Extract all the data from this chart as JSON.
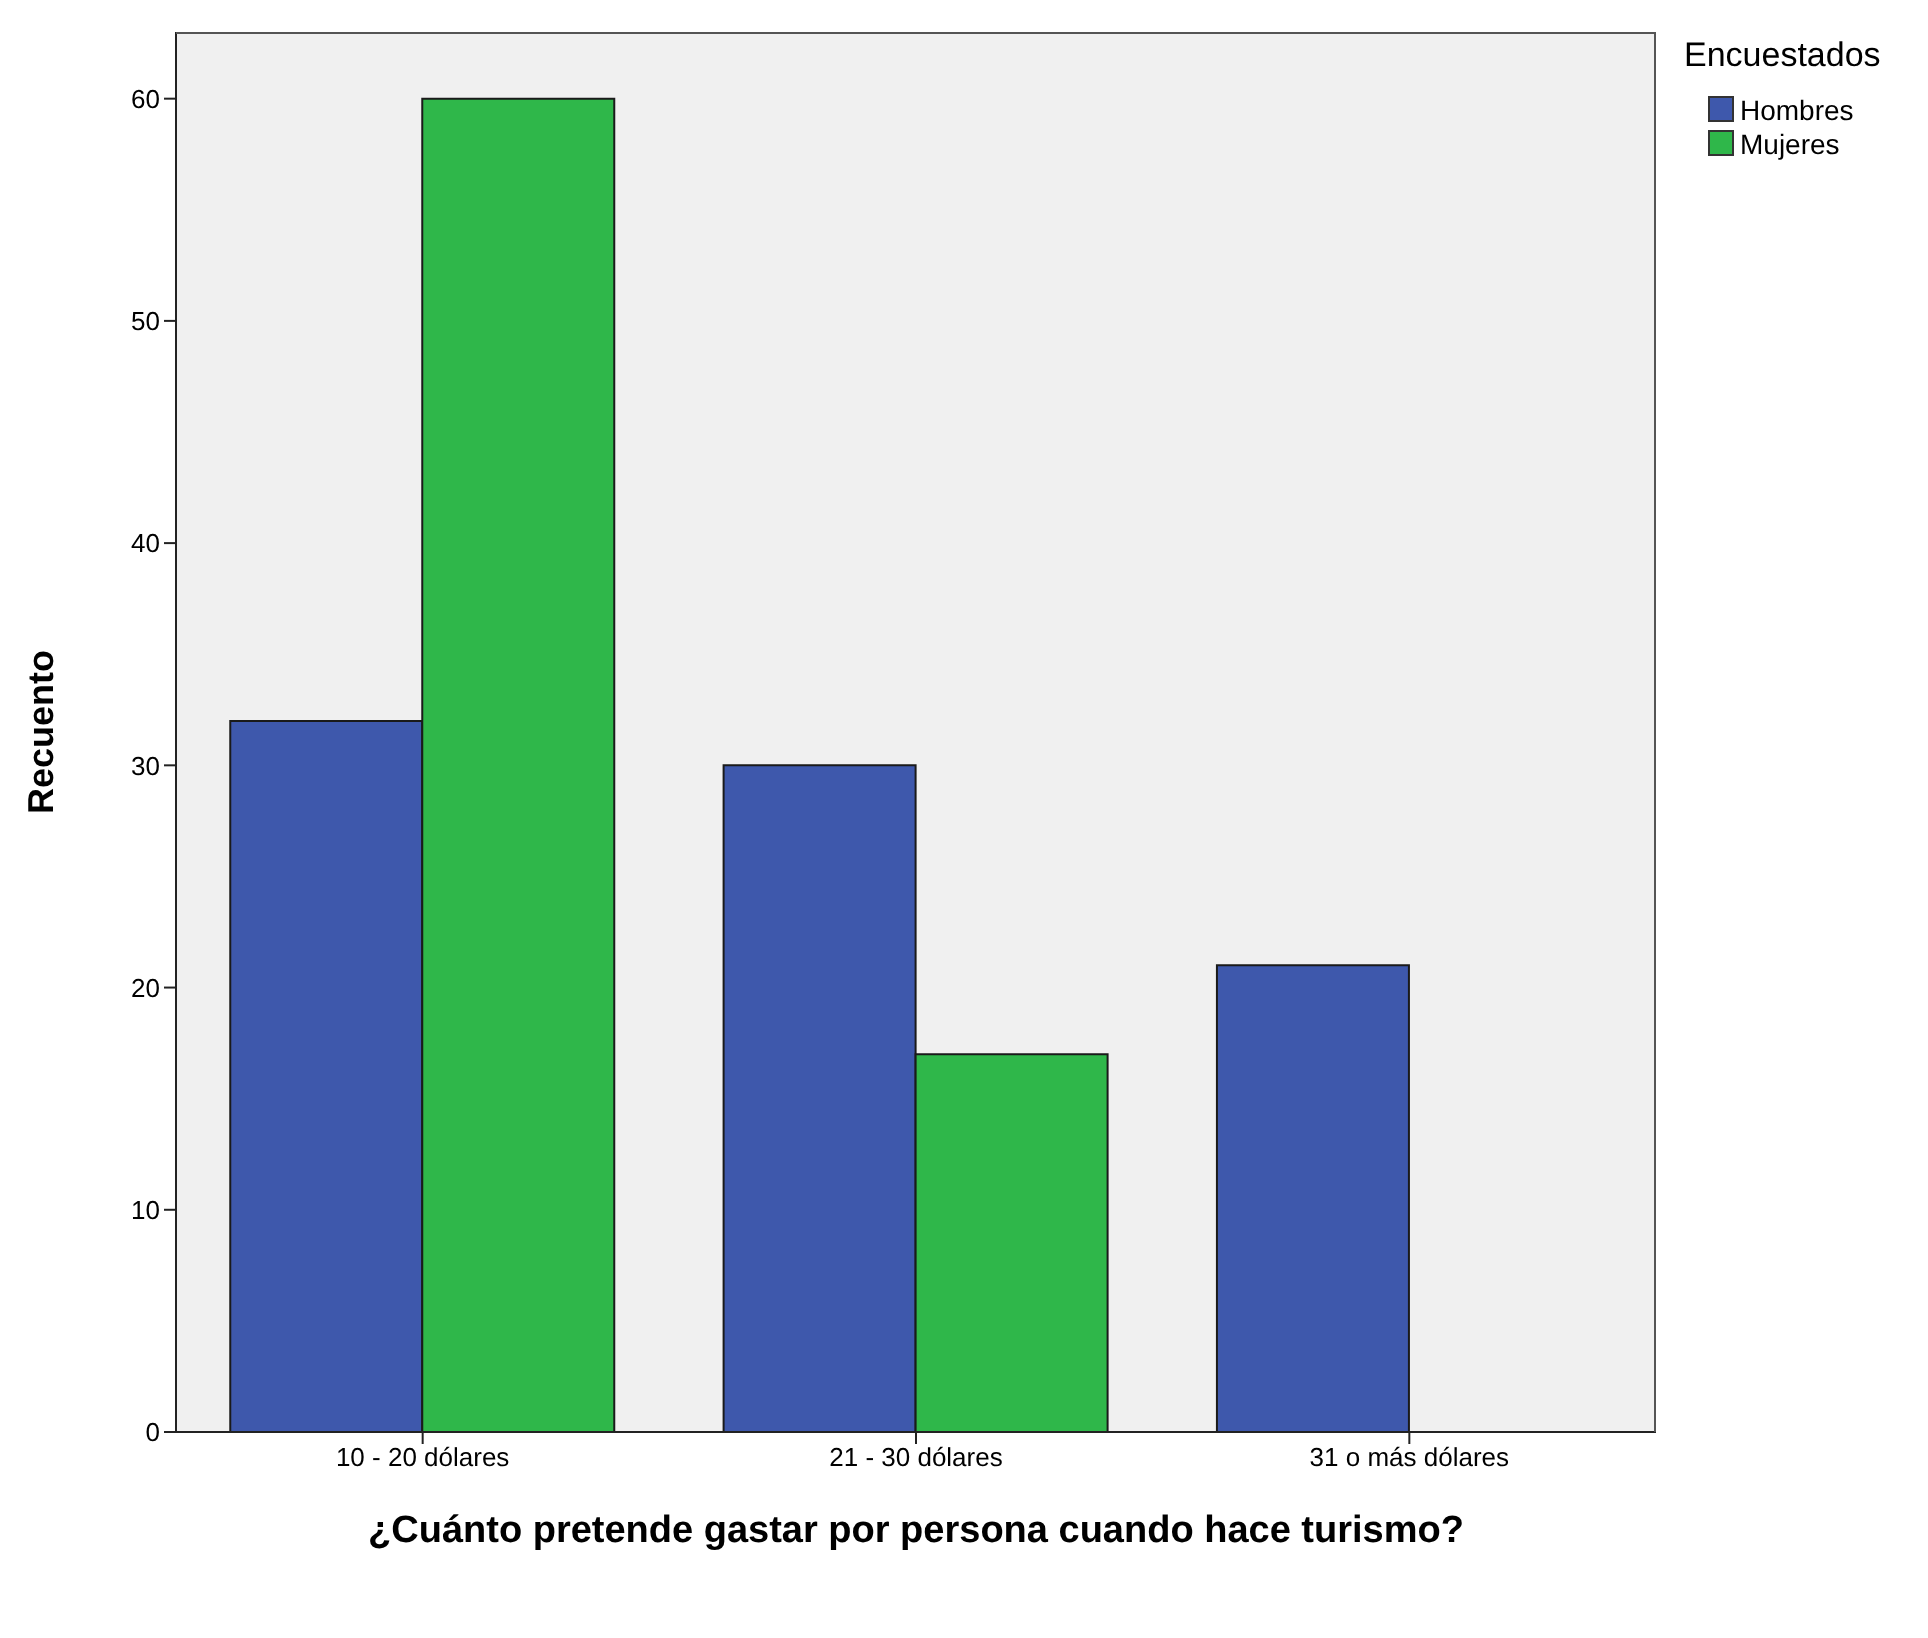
{
  "chart_data": {
    "type": "bar",
    "xlabel": "¿Cuánto pretende gastar por persona cuando hace turismo?",
    "ylabel": "Recuento",
    "legend_title": "Encuestados",
    "categories": [
      "10 - 20 dólares",
      "21 - 30 dólares",
      "31 o más dólares"
    ],
    "series": [
      {
        "name": "Hombres",
        "color": "#3e58ac",
        "values": [
          32,
          30,
          21
        ]
      },
      {
        "name": "Mujeres",
        "color": "#2fb74a",
        "values": [
          60,
          17,
          null
        ]
      }
    ],
    "ylim": [
      0,
      63
    ],
    "yticks": [
      0,
      10,
      20,
      30,
      40,
      50,
      60
    ],
    "legend": "top right"
  }
}
